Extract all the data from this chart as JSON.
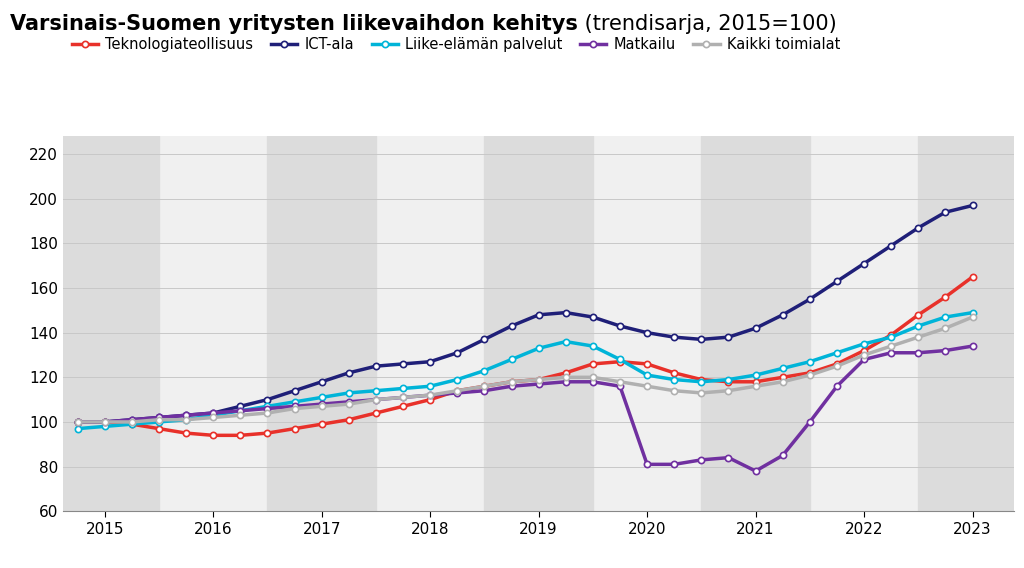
{
  "title_bold": "Varsinais-Suomen yritysten liikevaihdon kehitys",
  "title_normal": " (trendisarja, 2015=100)",
  "background_color": "#ffffff",
  "plot_bg_color": "#f0f0f0",
  "stripe_color": "#dcdcdc",
  "white_color": "#f0f0f0",
  "ylim": [
    60,
    228
  ],
  "yticks": [
    60,
    80,
    100,
    120,
    140,
    160,
    180,
    200,
    220
  ],
  "xlabel_years": [
    2015,
    2016,
    2017,
    2018,
    2019,
    2020,
    2021,
    2022,
    2023
  ],
  "series": {
    "Teknologiateollisuus": {
      "color": "#e8312a",
      "linewidth": 2.5,
      "x": [
        2014.75,
        2015.0,
        2015.25,
        2015.5,
        2015.75,
        2016.0,
        2016.25,
        2016.5,
        2016.75,
        2017.0,
        2017.25,
        2017.5,
        2017.75,
        2018.0,
        2018.25,
        2018.5,
        2018.75,
        2019.0,
        2019.25,
        2019.5,
        2019.75,
        2020.0,
        2020.25,
        2020.5,
        2020.75,
        2021.0,
        2021.25,
        2021.5,
        2021.75,
        2022.0,
        2022.25,
        2022.5,
        2022.75,
        2023.0
      ],
      "y": [
        100,
        100,
        99,
        97,
        95,
        94,
        94,
        95,
        97,
        99,
        101,
        104,
        107,
        110,
        114,
        116,
        118,
        119,
        122,
        126,
        127,
        126,
        122,
        119,
        118,
        118,
        120,
        122,
        126,
        132,
        139,
        148,
        156,
        165
      ]
    },
    "ICT-ala": {
      "color": "#1f1f78",
      "linewidth": 2.5,
      "x": [
        2014.75,
        2015.0,
        2015.25,
        2015.5,
        2015.75,
        2016.0,
        2016.25,
        2016.5,
        2016.75,
        2017.0,
        2017.25,
        2017.5,
        2017.75,
        2018.0,
        2018.25,
        2018.5,
        2018.75,
        2019.0,
        2019.25,
        2019.5,
        2019.75,
        2020.0,
        2020.25,
        2020.5,
        2020.75,
        2021.0,
        2021.25,
        2021.5,
        2021.75,
        2022.0,
        2022.25,
        2022.5,
        2022.75,
        2023.0
      ],
      "y": [
        100,
        100,
        101,
        102,
        103,
        104,
        107,
        110,
        114,
        118,
        122,
        125,
        126,
        127,
        131,
        137,
        143,
        148,
        149,
        147,
        143,
        140,
        138,
        137,
        138,
        142,
        148,
        155,
        163,
        171,
        179,
        187,
        194,
        197
      ]
    },
    "Liike-elämän palvelut": {
      "color": "#00b4d8",
      "linewidth": 2.5,
      "x": [
        2014.75,
        2015.0,
        2015.25,
        2015.5,
        2015.75,
        2016.0,
        2016.25,
        2016.5,
        2016.75,
        2017.0,
        2017.25,
        2017.5,
        2017.75,
        2018.0,
        2018.25,
        2018.5,
        2018.75,
        2019.0,
        2019.25,
        2019.5,
        2019.75,
        2020.0,
        2020.25,
        2020.5,
        2020.75,
        2021.0,
        2021.25,
        2021.5,
        2021.75,
        2022.0,
        2022.25,
        2022.5,
        2022.75,
        2023.0
      ],
      "y": [
        97,
        98,
        99,
        100,
        101,
        103,
        105,
        107,
        109,
        111,
        113,
        114,
        115,
        116,
        119,
        123,
        128,
        133,
        136,
        134,
        128,
        121,
        119,
        118,
        119,
        121,
        124,
        127,
        131,
        135,
        138,
        143,
        147,
        149
      ]
    },
    "Matkailu": {
      "color": "#7030a0",
      "linewidth": 2.5,
      "x": [
        2014.75,
        2015.0,
        2015.25,
        2015.5,
        2015.75,
        2016.0,
        2016.25,
        2016.5,
        2016.75,
        2017.0,
        2017.25,
        2017.5,
        2017.75,
        2018.0,
        2018.25,
        2018.5,
        2018.75,
        2019.0,
        2019.25,
        2019.5,
        2019.75,
        2020.0,
        2020.25,
        2020.5,
        2020.75,
        2021.0,
        2021.25,
        2021.5,
        2021.75,
        2022.0,
        2022.25,
        2022.5,
        2022.75,
        2023.0
      ],
      "y": [
        100,
        100,
        101,
        102,
        103,
        104,
        105,
        106,
        107,
        108,
        109,
        110,
        111,
        112,
        113,
        114,
        116,
        117,
        118,
        118,
        116,
        81,
        81,
        83,
        84,
        78,
        85,
        100,
        116,
        128,
        131,
        131,
        132,
        134
      ]
    },
    "Kaikki toimialat": {
      "color": "#b0b0b0",
      "linewidth": 2.5,
      "x": [
        2014.75,
        2015.0,
        2015.25,
        2015.5,
        2015.75,
        2016.0,
        2016.25,
        2016.5,
        2016.75,
        2017.0,
        2017.25,
        2017.5,
        2017.75,
        2018.0,
        2018.25,
        2018.5,
        2018.75,
        2019.0,
        2019.25,
        2019.5,
        2019.75,
        2020.0,
        2020.25,
        2020.5,
        2020.75,
        2021.0,
        2021.25,
        2021.5,
        2021.75,
        2022.0,
        2022.25,
        2022.5,
        2022.75,
        2023.0
      ],
      "y": [
        100,
        100,
        100,
        101,
        101,
        102,
        103,
        104,
        106,
        107,
        108,
        110,
        111,
        112,
        114,
        116,
        118,
        119,
        120,
        120,
        118,
        116,
        114,
        113,
        114,
        116,
        118,
        121,
        125,
        130,
        134,
        138,
        142,
        147
      ]
    }
  },
  "legend_order": [
    "Teknologiateollisuus",
    "ICT-ala",
    "Liike-elämän palvelut",
    "Matkailu",
    "Kaikki toimialat"
  ],
  "stripe_years_dark": [
    2015,
    2017,
    2019,
    2021,
    2023
  ],
  "xlim_left": 2014.62,
  "xlim_right": 2023.38
}
